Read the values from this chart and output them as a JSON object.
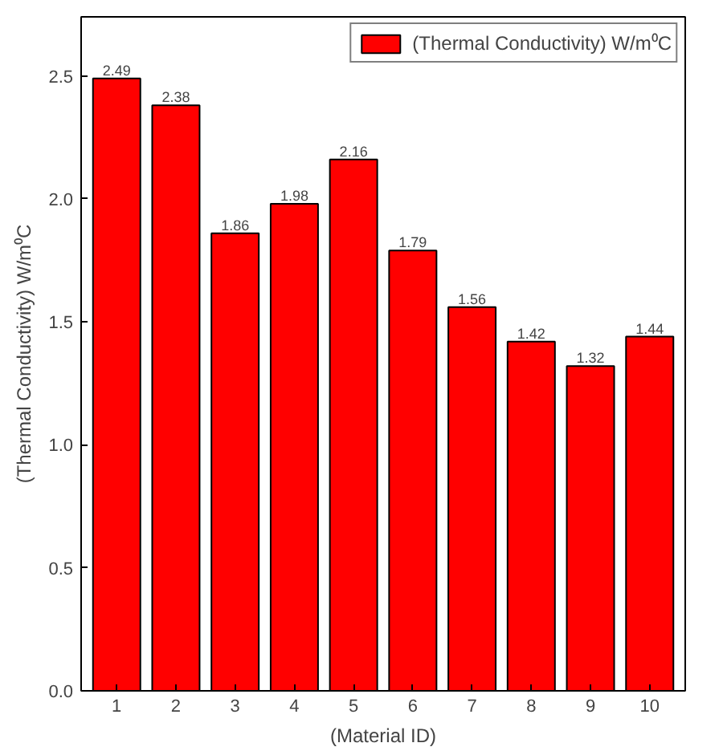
{
  "chart_data": {
    "type": "bar",
    "xlabel": "(Material ID)",
    "ylabel": "(Thermal Conductivity) W/m⁰C",
    "x": [
      1,
      2,
      3,
      4,
      5,
      6,
      7,
      8,
      9,
      10
    ],
    "series": [
      {
        "name": "(Thermal Conductivity) W/m⁰C",
        "color": "#ff0000",
        "values": [
          2.49,
          2.38,
          1.86,
          1.98,
          2.16,
          1.79,
          1.56,
          1.42,
          1.32,
          1.44
        ]
      }
    ],
    "xlim": [
      0.4,
      10.6
    ],
    "ylim": [
      0,
      2.74
    ],
    "xticks": [
      1,
      2,
      3,
      4,
      5,
      6,
      7,
      8,
      9,
      10
    ],
    "yticks": [
      {
        "value": 0,
        "label": "0.0"
      },
      {
        "value": 0.5,
        "label": "0.5"
      },
      {
        "value": 1,
        "label": "1.0"
      },
      {
        "value": 1.5,
        "label": "1.5"
      },
      {
        "value": 2,
        "label": "2.0"
      },
      {
        "value": 2.5,
        "label": "2.5"
      }
    ],
    "data_labels": true,
    "legend": "top right",
    "grid": false
  }
}
